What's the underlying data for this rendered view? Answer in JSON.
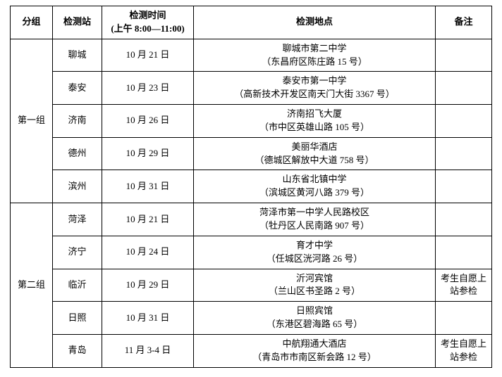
{
  "header": {
    "group": "分组",
    "station": "检测站",
    "time_line1": "检测时间",
    "time_line2": "(上午 8:00—11:00)",
    "location": "检测地点",
    "note": "备注"
  },
  "groups": [
    {
      "name": "第一组",
      "rows": [
        {
          "station": "聊城",
          "time": "10 月 21 日",
          "loc1": "聊城市第二中学",
          "loc2": "（东昌府区陈庄路 15 号）",
          "note": ""
        },
        {
          "station": "泰安",
          "time": "10 月 23 日",
          "loc1": "泰安市第一中学",
          "loc2": "（高新技术开发区南天门大街 3367 号）",
          "note": ""
        },
        {
          "station": "济南",
          "time": "10 月 26 日",
          "loc1": "济南招飞大厦",
          "loc2": "（市中区英雄山路 105 号）",
          "note": ""
        },
        {
          "station": "德州",
          "time": "10 月 29 日",
          "loc1": "美丽华酒店",
          "loc2": "（德城区解放中大道 758 号）",
          "note": ""
        },
        {
          "station": "滨州",
          "time": "10 月 31 日",
          "loc1": "山东省北镇中学",
          "loc2": "（滨城区黄河八路 379 号）",
          "note": ""
        }
      ]
    },
    {
      "name": "第二组",
      "rows": [
        {
          "station": "菏泽",
          "time": "10 月 21 日",
          "loc1": "菏泽市第一中学人民路校区",
          "loc2": "（牡丹区人民南路 907 号）",
          "note": ""
        },
        {
          "station": "济宁",
          "time": "10 月 24 日",
          "loc1": "育才中学",
          "loc2": "（任城区洸河路 26 号）",
          "note": ""
        },
        {
          "station": "临沂",
          "time": "10 月 29 日",
          "loc1": "沂河宾馆",
          "loc2": "（兰山区书圣路 2 号）",
          "note": "考生自愿上站参检"
        },
        {
          "station": "日照",
          "time": "10 月 31 日",
          "loc1": "日照宾馆",
          "loc2": "（东港区碧海路 65 号）",
          "note": ""
        },
        {
          "station": "青岛",
          "time": "11 月 3-4 日",
          "loc1": "中航翔通大酒店",
          "loc2": "（青岛市市南区新会路 12 号）",
          "note": "考生自愿上站参检"
        }
      ]
    }
  ]
}
